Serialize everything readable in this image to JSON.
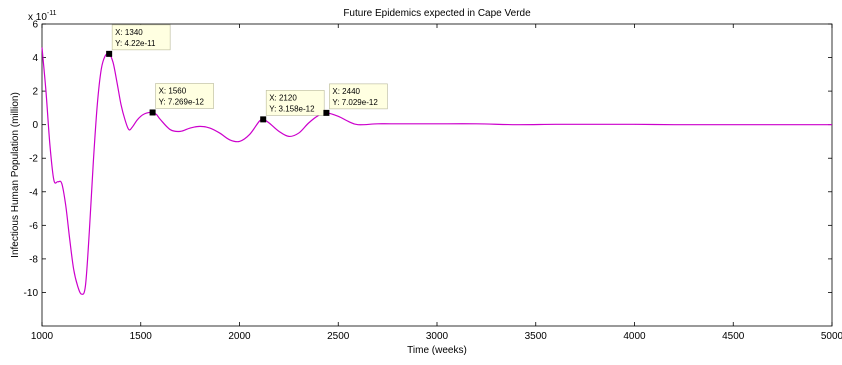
{
  "chart_data": {
    "type": "line",
    "title": "Future Epidemics expected in Cape Verde",
    "xlabel": "Time (weeks)",
    "ylabel": "Infectious Human Population (million)",
    "y_multiplier_label": "x 10",
    "y_multiplier_exponent": "-11",
    "xlim": [
      1000,
      5000
    ],
    "ylim": [
      -12,
      6
    ],
    "x_ticks": [
      1000,
      1500,
      2000,
      2500,
      3000,
      3500,
      4000,
      4500,
      5000
    ],
    "y_ticks": [
      -10,
      -8,
      -6,
      -4,
      -2,
      0,
      2,
      4,
      6
    ],
    "grid": false,
    "line_color": "#cc00cc",
    "series": [
      {
        "x": [
          1000,
          1020,
          1040,
          1060,
          1080,
          1100,
          1120,
          1140,
          1160,
          1180,
          1200,
          1220,
          1240,
          1260,
          1280,
          1300,
          1320,
          1340,
          1360,
          1380,
          1400,
          1420,
          1440,
          1460,
          1480,
          1500,
          1520,
          1540,
          1560,
          1580,
          1600,
          1650,
          1700,
          1750,
          1800,
          1850,
          1900,
          1950,
          2000,
          2050,
          2100,
          2120,
          2150,
          2200,
          2250,
          2300,
          2350,
          2400,
          2440,
          2500,
          2550,
          2600,
          2700,
          2800,
          2900,
          3000,
          3200,
          3400,
          3600,
          3800,
          4000,
          4200,
          4400,
          4600,
          4800,
          5000
        ],
        "y": [
          4.6,
          2.0,
          -1.2,
          -3.3,
          -3.4,
          -3.5,
          -4.8,
          -6.8,
          -8.6,
          -9.6,
          -10.1,
          -9.6,
          -6.3,
          -2.2,
          1.2,
          3.3,
          4.1,
          4.22,
          3.7,
          2.5,
          1.2,
          0.3,
          -0.3,
          -0.1,
          0.25,
          0.5,
          0.65,
          0.72,
          0.7269,
          0.6,
          0.3,
          -0.3,
          -0.4,
          -0.2,
          -0.1,
          -0.2,
          -0.5,
          -0.9,
          -1.0,
          -0.6,
          0.2,
          0.3158,
          0.1,
          -0.4,
          -0.7,
          -0.5,
          0.1,
          0.55,
          0.7029,
          0.5,
          0.2,
          0.0,
          0.05,
          0.05,
          0.05,
          0.05,
          0.05,
          0.0,
          0.02,
          0.02,
          0.02,
          0.0,
          0.0,
          0.0,
          0.0,
          0.0
        ]
      }
    ],
    "datatips": [
      {
        "x": 1340,
        "y": 4.22,
        "x_label": "X: 1340",
        "y_label": "Y: 4.22e-11"
      },
      {
        "x": 1560,
        "y": 0.7269,
        "x_label": "X: 1560",
        "y_label": "Y: 7.269e-12"
      },
      {
        "x": 2120,
        "y": 0.3158,
        "x_label": "X: 2120",
        "y_label": "Y: 3.158e-12"
      },
      {
        "x": 2440,
        "y": 0.7029,
        "x_label": "X: 2440",
        "y_label": "Y: 7.029e-12"
      }
    ]
  }
}
